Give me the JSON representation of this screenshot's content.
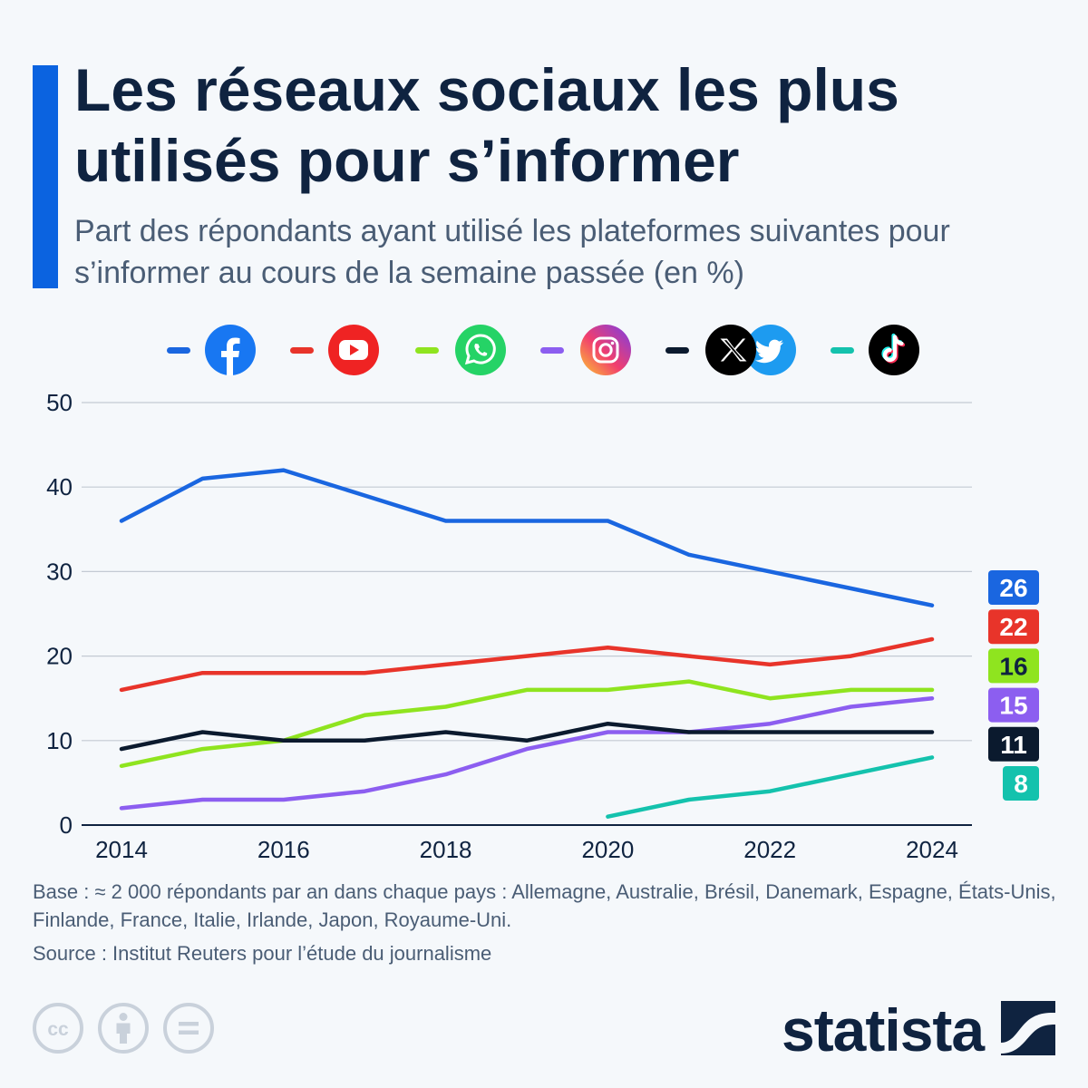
{
  "header": {
    "title": "Les réseaux sociaux les plus utilisés pour s’informer",
    "subtitle": "Part des répondants ayant utilisé les plateformes suivantes pour s’informer au cours de la semaine passée (en %)"
  },
  "legend": [
    {
      "icon": "facebook-icon",
      "color": "#1a66e0"
    },
    {
      "icon": "youtube-icon",
      "color": "#e8342a"
    },
    {
      "icon": "whatsapp-icon",
      "color": "#8fe41f"
    },
    {
      "icon": "instagram-icon",
      "color": "#8c5ef0"
    },
    {
      "icon": "x-twitter-icon",
      "color": "#0b1a2e"
    },
    {
      "icon": "tiktok-icon",
      "color": "#14c2ad"
    }
  ],
  "chart_data": {
    "type": "line",
    "x": [
      2014,
      2015,
      2016,
      2017,
      2018,
      2019,
      2020,
      2021,
      2022,
      2023,
      2024
    ],
    "xticks": [
      2014,
      2016,
      2018,
      2020,
      2022,
      2024
    ],
    "yticks": [
      0,
      10,
      20,
      30,
      40,
      50
    ],
    "ylim": [
      0,
      50
    ],
    "grid": true,
    "series": [
      {
        "key": "facebook",
        "color": "#1a66e0",
        "label_bg": "#1a66e0",
        "label_fg": "#ffffff",
        "values": [
          36,
          41,
          42,
          39,
          36,
          36,
          36,
          32,
          30,
          28,
          26
        ],
        "end_label": "26"
      },
      {
        "key": "youtube",
        "color": "#e8342a",
        "label_bg": "#e8342a",
        "label_fg": "#ffffff",
        "values": [
          16,
          18,
          18,
          18,
          19,
          20,
          21,
          20,
          19,
          20,
          22
        ],
        "end_label": "22"
      },
      {
        "key": "whatsapp",
        "color": "#8fe41f",
        "label_bg": "#8fe41f",
        "label_fg": "#0f2340",
        "values": [
          7,
          9,
          10,
          13,
          14,
          16,
          16,
          17,
          15,
          16,
          16
        ],
        "end_label": "16"
      },
      {
        "key": "instagram",
        "color": "#8c5ef0",
        "label_bg": "#8c5ef0",
        "label_fg": "#ffffff",
        "values": [
          2,
          3,
          3,
          4,
          6,
          9,
          11,
          11,
          12,
          14,
          15
        ],
        "end_label": "15"
      },
      {
        "key": "x-twitter",
        "color": "#0b1a2e",
        "label_bg": "#0b1a2e",
        "label_fg": "#ffffff",
        "values": [
          9,
          11,
          10,
          10,
          11,
          10,
          12,
          11,
          11,
          11,
          11
        ],
        "end_label": "11"
      },
      {
        "key": "tiktok",
        "color": "#14c2ad",
        "label_bg": "#14c2ad",
        "label_fg": "#ffffff",
        "values": [
          null,
          null,
          null,
          null,
          null,
          null,
          1,
          3,
          4,
          6,
          8
        ],
        "end_label": "8"
      }
    ]
  },
  "footer": {
    "base": "Base : ≈ 2 000 répondants par an dans chaque pays : Allemagne, Australie, Brésil, Danemark, Espagne, États-Unis, Finlande, France, Italie, Irlande, Japon, Royaume-Uni.",
    "source": "Source : Institut Reuters pour l’étude du journalisme",
    "license_icons": [
      "cc-icon",
      "attribution-icon",
      "no-derivatives-icon"
    ],
    "brand": "statista"
  }
}
